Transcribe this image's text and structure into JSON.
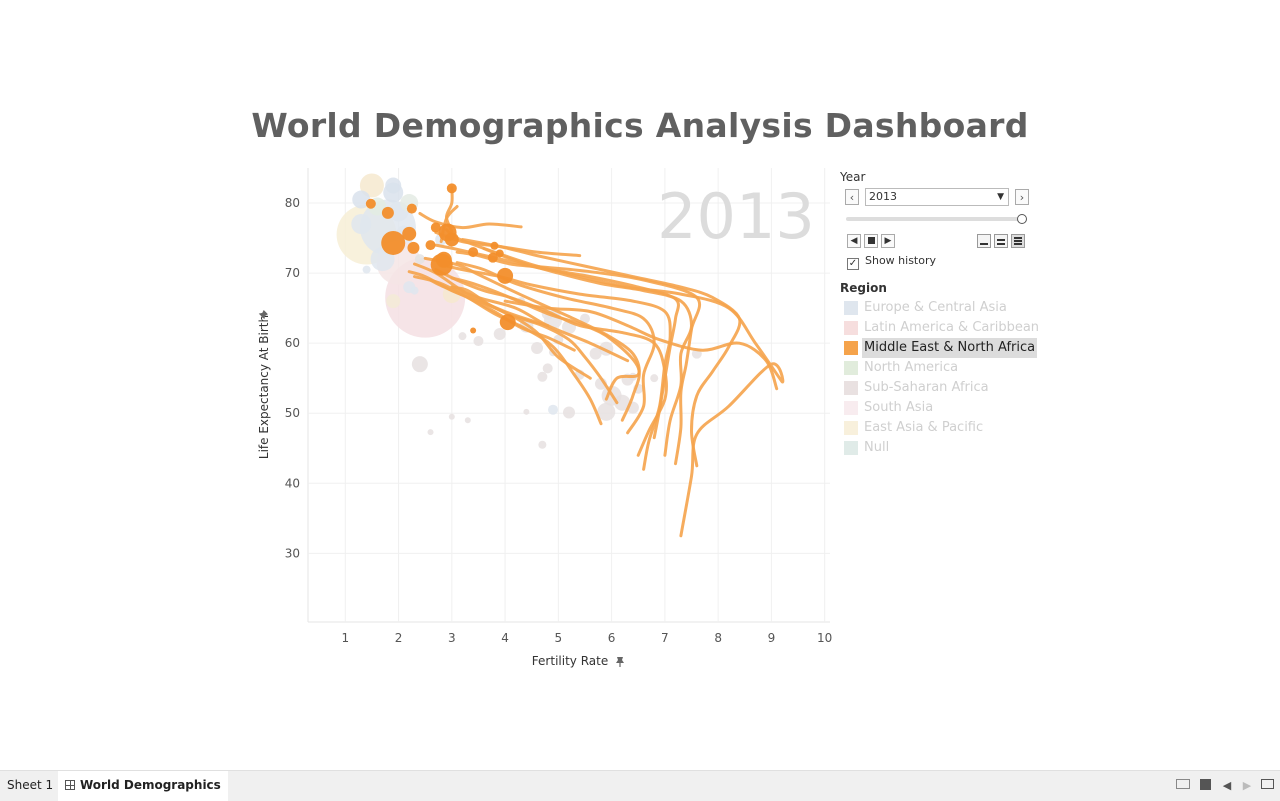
{
  "dashboard": {
    "title": "World Demographics Analysis Dashboard"
  },
  "chart_data": {
    "type": "scatter",
    "subtype": "animated bubble chart with history trails",
    "watermark_year": "2013",
    "xlabel": "Fertility Rate",
    "ylabel": "Life Expectancy At Birth",
    "xlim": [
      0.3,
      10.1
    ],
    "ylim": [
      20.2,
      85
    ],
    "x_ticks": [
      "1",
      "2",
      "3",
      "4",
      "5",
      "6",
      "7",
      "8",
      "9",
      "10"
    ],
    "y_ticks": [
      "30",
      "40",
      "50",
      "60",
      "70",
      "80"
    ],
    "grid": true,
    "highlight_color": "#f28e2b",
    "trail_color": "#f5a34b",
    "trails": [
      [
        [
          9.1,
          53.5
        ],
        [
          8.9,
          57.5
        ],
        [
          8.4,
          60
        ],
        [
          7.7,
          59
        ],
        [
          6.9,
          60.5
        ],
        [
          6.3,
          62.5
        ],
        [
          5.6,
          64.5
        ],
        [
          4.8,
          65
        ],
        [
          4.0,
          66
        ]
      ],
      [
        [
          7.3,
          32.5
        ],
        [
          7.5,
          41
        ],
        [
          7.6,
          47
        ],
        [
          8.2,
          51
        ],
        [
          9.0,
          57
        ],
        [
          9.2,
          54.5
        ],
        [
          8.7,
          60
        ],
        [
          8.2,
          65
        ],
        [
          7.3,
          67
        ],
        [
          6.3,
          68
        ],
        [
          5.4,
          69.5
        ],
        [
          4.6,
          71
        ],
        [
          3.8,
          73
        ],
        [
          3.1,
          75
        ],
        [
          2.9,
          76.2
        ]
      ],
      [
        [
          7.6,
          42.5
        ],
        [
          7.5,
          47.5
        ],
        [
          7.6,
          52.5
        ],
        [
          7.9,
          56
        ],
        [
          8.2,
          59.5
        ],
        [
          8.4,
          63.5
        ],
        [
          7.9,
          66.5
        ],
        [
          7.3,
          68
        ],
        [
          6.4,
          69.5
        ],
        [
          5.5,
          71
        ],
        [
          4.6,
          72.5
        ],
        [
          3.9,
          73.8
        ],
        [
          3.2,
          74.8
        ]
      ],
      [
        [
          7.2,
          42.8
        ],
        [
          7.3,
          48
        ],
        [
          7.3,
          53
        ],
        [
          7.4,
          57
        ],
        [
          7.5,
          62
        ],
        [
          7.6,
          66.5
        ],
        [
          6.6,
          69
        ],
        [
          5.6,
          70.2
        ],
        [
          4.8,
          70.8
        ],
        [
          4.1,
          71.3
        ],
        [
          3.5,
          72.5
        ],
        [
          3.1,
          73
        ]
      ],
      [
        [
          7.0,
          44
        ],
        [
          7.1,
          49
        ],
        [
          7.3,
          54
        ],
        [
          7.3,
          58.5
        ],
        [
          7.5,
          62.5
        ],
        [
          7.3,
          66
        ],
        [
          6.6,
          67.5
        ],
        [
          5.8,
          68.5
        ],
        [
          5.0,
          70
        ],
        [
          4.3,
          71.5
        ],
        [
          3.6,
          73.5
        ]
      ],
      [
        [
          6.8,
          46.5
        ],
        [
          6.9,
          50.5
        ],
        [
          7.0,
          55
        ],
        [
          7.1,
          59.5
        ],
        [
          7.2,
          63.5
        ],
        [
          7.2,
          66.3
        ],
        [
          6.5,
          68
        ],
        [
          5.6,
          69.5
        ],
        [
          4.6,
          70.8
        ],
        [
          3.8,
          72.2
        ],
        [
          3.1,
          73.4
        ],
        [
          2.7,
          74
        ]
      ],
      [
        [
          6.6,
          42
        ],
        [
          6.7,
          46
        ],
        [
          6.9,
          51
        ],
        [
          7.0,
          57
        ],
        [
          7.1,
          61
        ],
        [
          7.0,
          64.5
        ],
        [
          6.4,
          66
        ],
        [
          5.4,
          67
        ],
        [
          4.5,
          68.3
        ],
        [
          3.9,
          69.5
        ],
        [
          3.2,
          70.5
        ],
        [
          2.8,
          71.2
        ]
      ],
      [
        [
          6.5,
          44
        ],
        [
          6.7,
          47.5
        ],
        [
          7.0,
          52
        ],
        [
          7.0,
          56
        ],
        [
          6.8,
          60
        ],
        [
          6.2,
          61.5
        ],
        [
          5.4,
          62.5
        ],
        [
          4.8,
          64.5
        ],
        [
          4.1,
          66.5
        ],
        [
          3.6,
          67.5
        ],
        [
          3.1,
          69
        ],
        [
          2.7,
          70.5
        ]
      ],
      [
        [
          6.3,
          47.2
        ],
        [
          6.6,
          51
        ],
        [
          6.6,
          55.5
        ],
        [
          6.8,
          60
        ],
        [
          6.6,
          63.5
        ],
        [
          6.0,
          65
        ],
        [
          5.1,
          66.5
        ],
        [
          4.2,
          68.5
        ],
        [
          3.6,
          70.5
        ],
        [
          3.1,
          71.5
        ]
      ],
      [
        [
          6.2,
          49
        ],
        [
          6.4,
          52.5
        ],
        [
          6.5,
          56.5
        ],
        [
          6.0,
          60.5
        ],
        [
          5.5,
          62.5
        ],
        [
          4.8,
          64.2
        ],
        [
          4.0,
          66.8
        ],
        [
          3.4,
          68.5
        ],
        [
          3.0,
          69.3
        ]
      ],
      [
        [
          5.9,
          52
        ],
        [
          6.1,
          55
        ],
        [
          6.5,
          55.5
        ],
        [
          6.4,
          58.5
        ],
        [
          5.9,
          61.2
        ],
        [
          5.2,
          63.8
        ],
        [
          4.7,
          65.5
        ],
        [
          4.1,
          67.6
        ],
        [
          3.5,
          69.8
        ],
        [
          3.1,
          71.2
        ],
        [
          2.5,
          72.1
        ]
      ],
      [
        [
          6.1,
          51.5
        ],
        [
          5.8,
          55
        ],
        [
          5.5,
          58
        ],
        [
          5.2,
          60.5
        ],
        [
          4.7,
          62.5
        ],
        [
          4.1,
          64
        ],
        [
          3.7,
          65.5
        ],
        [
          3.3,
          67.5
        ],
        [
          3.0,
          68
        ]
      ],
      [
        [
          5.8,
          48.5
        ],
        [
          5.6,
          52
        ],
        [
          5.3,
          55.5
        ],
        [
          4.9,
          59.5
        ],
        [
          4.4,
          62
        ],
        [
          3.8,
          64.2
        ],
        [
          3.3,
          66.5
        ],
        [
          2.8,
          68.5
        ],
        [
          2.3,
          69.5
        ]
      ],
      [
        [
          5.6,
          55
        ],
        [
          5.0,
          58
        ],
        [
          4.6,
          61.5
        ],
        [
          4.1,
          64
        ],
        [
          3.5,
          66
        ],
        [
          3.0,
          67.5
        ],
        [
          2.5,
          69.5
        ],
        [
          2.2,
          70.2
        ]
      ],
      [
        [
          6.3,
          57.5
        ],
        [
          5.6,
          60
        ],
        [
          4.8,
          62.5
        ],
        [
          4.2,
          65
        ],
        [
          3.5,
          66.5
        ],
        [
          3.0,
          68
        ]
      ],
      [
        [
          5.3,
          59
        ],
        [
          4.8,
          60.8
        ],
        [
          4.3,
          62.2
        ],
        [
          3.8,
          64.5
        ],
        [
          3.3,
          66.5
        ],
        [
          2.8,
          68.2
        ],
        [
          2.6,
          69
        ]
      ],
      [
        [
          4.8,
          62.5
        ],
        [
          4.0,
          64.5
        ],
        [
          3.3,
          67
        ],
        [
          2.7,
          70
        ],
        [
          2.3,
          71.3
        ]
      ],
      [
        [
          3.0,
          82.2
        ],
        [
          3.0,
          80
        ],
        [
          2.9,
          78
        ],
        [
          3.0,
          76
        ]
      ],
      [
        [
          3.1,
          79.5
        ],
        [
          2.9,
          77.8
        ],
        [
          2.8,
          74.5
        ]
      ],
      [
        [
          2.4,
          78.5
        ],
        [
          2.7,
          77.3
        ],
        [
          3.2,
          76.5
        ],
        [
          3.7,
          77
        ],
        [
          4.3,
          76.6
        ]
      ],
      [
        [
          2.7,
          75.8
        ],
        [
          3.2,
          74.5
        ],
        [
          3.9,
          73.8
        ],
        [
          4.6,
          73
        ],
        [
          5.4,
          72.5
        ]
      ]
    ],
    "highlighted_bubbles": [
      {
        "x": 2.92,
        "y": 75.8,
        "size": 9
      },
      {
        "x": 3.0,
        "y": 74.8,
        "size": 7
      },
      {
        "x": 2.81,
        "y": 71.2,
        "size": 11
      },
      {
        "x": 2.85,
        "y": 71.9,
        "size": 8
      },
      {
        "x": 1.9,
        "y": 74.3,
        "size": 12
      },
      {
        "x": 2.2,
        "y": 75.6,
        "size": 7
      },
      {
        "x": 1.8,
        "y": 78.6,
        "size": 6
      },
      {
        "x": 1.48,
        "y": 79.9,
        "size": 5
      },
      {
        "x": 3.0,
        "y": 82.1,
        "size": 5
      },
      {
        "x": 2.25,
        "y": 79.2,
        "size": 5
      },
      {
        "x": 2.28,
        "y": 73.6,
        "size": 6
      },
      {
        "x": 4.0,
        "y": 69.6,
        "size": 8
      },
      {
        "x": 4.05,
        "y": 63.0,
        "size": 8
      },
      {
        "x": 3.4,
        "y": 73.0,
        "size": 5
      },
      {
        "x": 3.77,
        "y": 72.2,
        "size": 5
      },
      {
        "x": 2.6,
        "y": 74.0,
        "size": 5
      },
      {
        "x": 2.7,
        "y": 76.5,
        "size": 5
      },
      {
        "x": 3.9,
        "y": 72.8,
        "size": 4
      },
      {
        "x": 3.4,
        "y": 61.8,
        "size": 3
      },
      {
        "x": 3.8,
        "y": 73.9,
        "size": 4
      }
    ],
    "faded_bubbles": [
      {
        "x": 2.5,
        "y": 66.5,
        "size": 40,
        "color": "#f5dfe3"
      },
      {
        "x": 1.4,
        "y": 75.5,
        "size": 30,
        "color": "#f7eed6"
      },
      {
        "x": 1.8,
        "y": 76.5,
        "size": 28,
        "color": "#dfe6ee"
      },
      {
        "x": 2.0,
        "y": 71.5,
        "size": 22,
        "color": "#f4e5e5"
      },
      {
        "x": 1.5,
        "y": 82.5,
        "size": 12,
        "color": "#f6e9cf"
      },
      {
        "x": 1.9,
        "y": 81.5,
        "size": 10,
        "color": "#d9e2ec"
      },
      {
        "x": 1.3,
        "y": 80.5,
        "size": 9,
        "color": "#d9e2ec"
      },
      {
        "x": 1.7,
        "y": 72,
        "size": 12,
        "color": "#dfe6ee"
      },
      {
        "x": 1.3,
        "y": 77.0,
        "size": 10,
        "color": "#dfe6ee"
      },
      {
        "x": 1.6,
        "y": 79.5,
        "size": 9,
        "color": "#e3ece3"
      },
      {
        "x": 2.0,
        "y": 78.8,
        "size": 10,
        "color": "#dfe6ee"
      },
      {
        "x": 2.2,
        "y": 80,
        "size": 9,
        "color": "#e4ebe4"
      },
      {
        "x": 1.9,
        "y": 66,
        "size": 7,
        "color": "#f3ebd6"
      },
      {
        "x": 2.2,
        "y": 68,
        "size": 6,
        "color": "#dfe6ee"
      },
      {
        "x": 3.0,
        "y": 67,
        "size": 9,
        "color": "#f6e9cf"
      },
      {
        "x": 2.4,
        "y": 57,
        "size": 8,
        "color": "#e6e1e1"
      },
      {
        "x": 2.8,
        "y": 74.8,
        "size": 6,
        "color": "#dfe6ee"
      },
      {
        "x": 2.1,
        "y": 75.8,
        "size": 7,
        "color": "#dfe6ee"
      },
      {
        "x": 1.9,
        "y": 82.5,
        "size": 8,
        "color": "#d9e2ec"
      },
      {
        "x": 2.4,
        "y": 72,
        "size": 5,
        "color": "#e3e3e3"
      },
      {
        "x": 3.2,
        "y": 61,
        "size": 4,
        "color": "#e6e1e1"
      },
      {
        "x": 3.5,
        "y": 60.3,
        "size": 5,
        "color": "#e6e1e1"
      },
      {
        "x": 3.9,
        "y": 61.3,
        "size": 6,
        "color": "#e6e1e1"
      },
      {
        "x": 4.4,
        "y": 62.5,
        "size": 7,
        "color": "#e6e1e1"
      },
      {
        "x": 4.9,
        "y": 63.3,
        "size": 9,
        "color": "#e8e3e3"
      },
      {
        "x": 4.8,
        "y": 64.2,
        "size": 6,
        "color": "#e8e3e3"
      },
      {
        "x": 5.2,
        "y": 62.3,
        "size": 7,
        "color": "#e8e3e3"
      },
      {
        "x": 5.0,
        "y": 60.5,
        "size": 5,
        "color": "#e6e1e1"
      },
      {
        "x": 4.6,
        "y": 59.3,
        "size": 6,
        "color": "#e6e1e1"
      },
      {
        "x": 4.9,
        "y": 58.7,
        "size": 4,
        "color": "#e6e1e1"
      },
      {
        "x": 5.7,
        "y": 58.5,
        "size": 6,
        "color": "#e6e1e1"
      },
      {
        "x": 5.9,
        "y": 59.2,
        "size": 7,
        "color": "#e6e1e1"
      },
      {
        "x": 4.7,
        "y": 55.2,
        "size": 5,
        "color": "#e6e1e1"
      },
      {
        "x": 4.8,
        "y": 56.4,
        "size": 5,
        "color": "#e6e1e1"
      },
      {
        "x": 5.4,
        "y": 55.5,
        "size": 5,
        "color": "#e6e1e1"
      },
      {
        "x": 5.8,
        "y": 54.2,
        "size": 6,
        "color": "#e6e1e1"
      },
      {
        "x": 6.0,
        "y": 52.5,
        "size": 10,
        "color": "#e6e1e1"
      },
      {
        "x": 6.2,
        "y": 51.5,
        "size": 8,
        "color": "#e6e1e1"
      },
      {
        "x": 5.9,
        "y": 50.2,
        "size": 9,
        "color": "#e6e1e1"
      },
      {
        "x": 6.4,
        "y": 50.8,
        "size": 6,
        "color": "#e6e1e1"
      },
      {
        "x": 5.2,
        "y": 50.1,
        "size": 6,
        "color": "#e6e1e1"
      },
      {
        "x": 4.9,
        "y": 50.5,
        "size": 5,
        "color": "#dfe6ee"
      },
      {
        "x": 4.4,
        "y": 50.2,
        "size": 3,
        "color": "#e6e1e1"
      },
      {
        "x": 4.7,
        "y": 45.5,
        "size": 4,
        "color": "#e6e1e1"
      },
      {
        "x": 3.3,
        "y": 49,
        "size": 3,
        "color": "#e6e1e1"
      },
      {
        "x": 3.0,
        "y": 49.5,
        "size": 3,
        "color": "#e6e1e1"
      },
      {
        "x": 2.6,
        "y": 47.3,
        "size": 3,
        "color": "#e6e1e1"
      },
      {
        "x": 6.4,
        "y": 55.2,
        "size": 4,
        "color": "#e6e1e1"
      },
      {
        "x": 6.8,
        "y": 55.0,
        "size": 4,
        "color": "#e6e1e1"
      },
      {
        "x": 7.6,
        "y": 58.5,
        "size": 5,
        "color": "#e6e1e1"
      },
      {
        "x": 5.5,
        "y": 63.5,
        "size": 5,
        "color": "#e6e1e1"
      },
      {
        "x": 4.3,
        "y": 66,
        "size": 4,
        "color": "#e6e1e1"
      },
      {
        "x": 2.3,
        "y": 67.5,
        "size": 4,
        "color": "#dfe6ee"
      },
      {
        "x": 1.4,
        "y": 70.5,
        "size": 4,
        "color": "#dfe6ee"
      },
      {
        "x": 6.3,
        "y": 54.8,
        "size": 6,
        "color": "#e6e1e1"
      },
      {
        "x": 6.5,
        "y": 53.5,
        "size": 5,
        "color": "#e6e1e1"
      }
    ]
  },
  "controls": {
    "year_label": "Year",
    "year_value": "2013",
    "year_prev_icon": "chevron-left-icon",
    "year_next_icon": "chevron-right-icon",
    "slider_fraction": 1.0,
    "show_history_label": "Show history",
    "show_history_checked": true
  },
  "legend": {
    "title": "Region",
    "items": [
      {
        "label": "Europe & Central Asia",
        "color": "#dfe6ee"
      },
      {
        "label": "Latin America & Caribbean",
        "color": "#f6dede"
      },
      {
        "label": "Middle East & North Africa",
        "color": "#f5a34b"
      },
      {
        "label": "North America",
        "color": "#e1ecdc"
      },
      {
        "label": "Sub-Saharan Africa",
        "color": "#e9e1e1"
      },
      {
        "label": "South Asia",
        "color": "#f8ecef"
      },
      {
        "label": "East Asia & Pacific",
        "color": "#f8f0dc"
      },
      {
        "label": "Null",
        "color": "#e0ebe8"
      }
    ]
  },
  "tabs": [
    {
      "label": "Sheet 1"
    },
    {
      "label": "World Demographics"
    }
  ]
}
